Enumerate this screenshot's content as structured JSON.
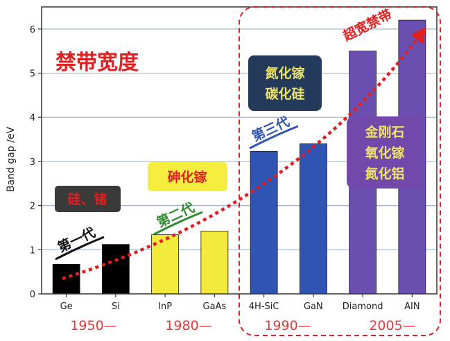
{
  "chart_data": {
    "type": "bar",
    "title": "禁带宽度",
    "ylabel": "Band gap /eV",
    "xlabel": "",
    "ylim": [
      0,
      6.5
    ],
    "yticks": [
      "0",
      "1",
      "2",
      "3",
      "4",
      "5",
      "6"
    ],
    "categories": [
      "Ge",
      "Si",
      "InP",
      "GaAs",
      "4H-SiC",
      "GaN",
      "Diamond",
      "AIN"
    ],
    "values": [
      0.67,
      1.12,
      1.34,
      1.42,
      3.23,
      3.4,
      5.5,
      6.2
    ],
    "bar_colors": [
      "#000000",
      "#000000",
      "#f2ea3c",
      "#f2ea3c",
      "#2f54b4",
      "#2f54b4",
      "#6a4fb0",
      "#6a4fb0"
    ],
    "grid": true,
    "eras": [
      "1950—",
      "1980—",
      "1990—",
      "2005—"
    ],
    "generations": [
      "第一代",
      "第二代",
      "第三代"
    ],
    "generation_colors": [
      "#111111",
      "#2e8b2e",
      "#2f54b4"
    ],
    "material_groups": [
      "硅、锗",
      "砷化镓",
      "氮化镓\n碳化硅",
      "金刚石\n氧化镓\n氮化铝"
    ],
    "trend_label": "超宽禁带",
    "colors": {
      "title": "#e02020",
      "era": "#e8393a",
      "trend": "#e02020"
    }
  }
}
